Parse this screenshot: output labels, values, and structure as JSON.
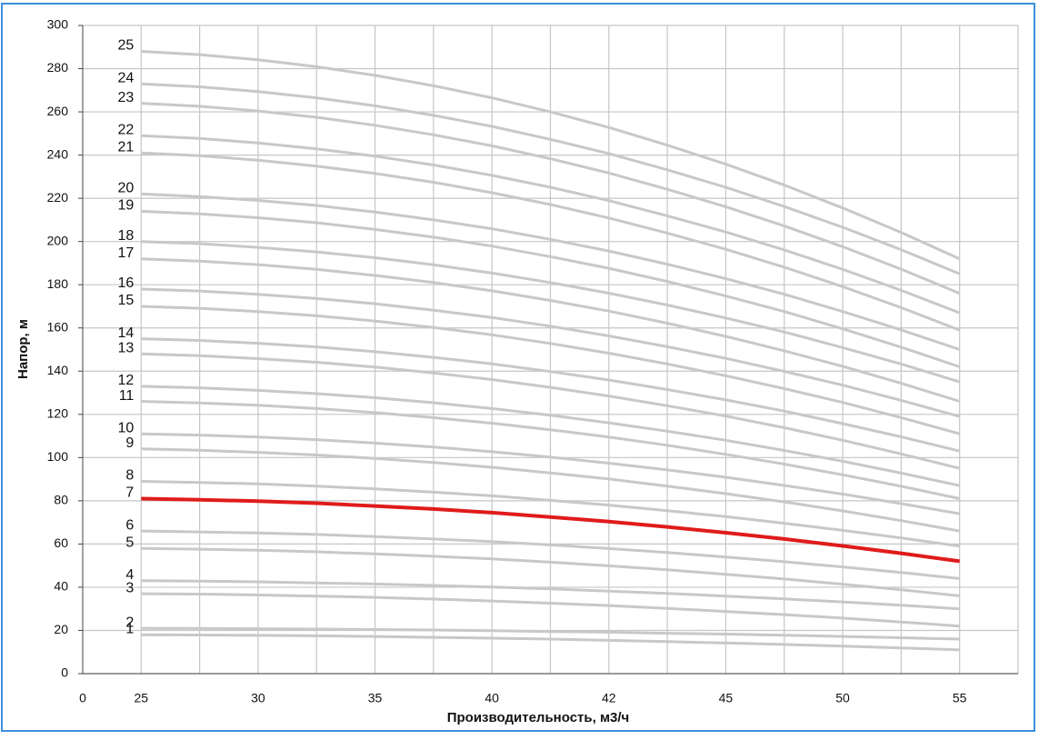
{
  "chart_data": {
    "type": "line",
    "x_label": "Производительность, м3/ч",
    "y_label": "Напор, м",
    "categories": [
      "0",
      "25",
      null,
      "30",
      null,
      "35",
      null,
      "40",
      null,
      "42",
      null,
      "45",
      null,
      "50",
      null,
      "55",
      null
    ],
    "ylim": [
      0,
      300
    ],
    "yticks": [
      0,
      20,
      40,
      60,
      80,
      100,
      120,
      140,
      160,
      180,
      200,
      220,
      240,
      260,
      280,
      300
    ],
    "grid": true,
    "series": [
      {
        "name": "1",
        "color": "#c8c8c8",
        "values": [
          null,
          18,
          17.9,
          17.7,
          17.5,
          17.2,
          16.8,
          16.4,
          16,
          15.4,
          14.8,
          14.2,
          13.5,
          12.7,
          11.9,
          11,
          null
        ]
      },
      {
        "name": "2",
        "color": "#c8c8c8",
        "values": [
          null,
          21,
          20.9,
          20.8,
          20.6,
          20.4,
          20.2,
          19.9,
          19.5,
          19.2,
          18.7,
          18.3,
          17.8,
          17.2,
          16.6,
          16,
          null
        ]
      },
      {
        "name": "3",
        "color": "#c8c8c8",
        "values": [
          null,
          37,
          36.8,
          36.4,
          35.9,
          35.3,
          34.5,
          33.6,
          32.6,
          31.5,
          30.2,
          28.8,
          27.3,
          25.7,
          23.9,
          22,
          null
        ]
      },
      {
        "name": "4",
        "color": "#c8c8c8",
        "values": [
          null,
          43,
          42.8,
          42.5,
          42,
          41.5,
          40.8,
          40.1,
          39.2,
          38.2,
          37.1,
          35.9,
          34.6,
          33.2,
          31.7,
          30,
          null
        ]
      },
      {
        "name": "5",
        "color": "#c8c8c8",
        "values": [
          null,
          58,
          57.6,
          57.1,
          56.4,
          55.4,
          54.3,
          53.1,
          51.6,
          49.9,
          48.1,
          46,
          43.8,
          41.4,
          38.8,
          36,
          null
        ]
      },
      {
        "name": "6",
        "color": "#c8c8c8",
        "values": [
          null,
          66,
          65.6,
          65.1,
          64.4,
          63.4,
          62.3,
          61.1,
          59.6,
          57.9,
          56.1,
          54,
          51.8,
          49.4,
          46.8,
          44,
          null
        ]
      },
      {
        "name": "7",
        "color": "#e01b1b",
        "values": [
          null,
          81,
          80.5,
          79.8,
          78.9,
          77.6,
          76.2,
          74.5,
          72.5,
          70.4,
          67.9,
          65.2,
          62.3,
          59.1,
          55.7,
          52,
          null
        ]
      },
      {
        "name": "8",
        "color": "#c8c8c8",
        "values": [
          null,
          89,
          88.5,
          87.8,
          86.8,
          85.5,
          84,
          82.3,
          80.2,
          78,
          75.4,
          72.7,
          69.6,
          66.3,
          62.8,
          59,
          null
        ]
      },
      {
        "name": "9",
        "color": "#c8c8c8",
        "values": [
          null,
          104,
          103.4,
          102.4,
          101.2,
          99.6,
          97.7,
          95.5,
          92.9,
          90.1,
          86.8,
          83.3,
          79.5,
          75.3,
          70.8,
          66,
          null
        ]
      },
      {
        "name": "10",
        "color": "#c8c8c8",
        "values": [
          null,
          111,
          110.4,
          109.5,
          108.3,
          106.7,
          104.9,
          102.7,
          100.2,
          97.4,
          94.3,
          90.9,
          87.1,
          83.1,
          78.7,
          74,
          null
        ]
      },
      {
        "name": "11",
        "color": "#c8c8c8",
        "values": [
          null,
          126,
          125.3,
          124.2,
          122.7,
          120.8,
          118.5,
          115.9,
          112.9,
          109.5,
          105.7,
          101.5,
          97,
          92,
          86.7,
          81,
          null
        ]
      },
      {
        "name": "12",
        "color": "#c8c8c8",
        "values": [
          null,
          133,
          132.3,
          131.1,
          129.6,
          127.7,
          125.4,
          122.7,
          119.6,
          116.1,
          112.2,
          108,
          103.3,
          98.3,
          92.8,
          87,
          null
        ]
      },
      {
        "name": "13",
        "color": "#c8c8c8",
        "values": [
          null,
          148,
          147.2,
          145.8,
          144.1,
          141.9,
          139.2,
          136.1,
          132.5,
          128.5,
          124,
          119.2,
          113.8,
          108,
          101.7,
          95,
          null
        ]
      },
      {
        "name": "14",
        "color": "#c8c8c8",
        "values": [
          null,
          155,
          154.2,
          152.9,
          151.2,
          149,
          146.4,
          143.4,
          139.8,
          135.9,
          131.5,
          126.7,
          121.5,
          115.7,
          109.6,
          103,
          null
        ]
      },
      {
        "name": "15",
        "color": "#c8c8c8",
        "values": [
          null,
          170,
          169.1,
          167.6,
          165.6,
          163.2,
          160.2,
          156.8,
          152.8,
          148.3,
          143.3,
          137.9,
          131.9,
          125.5,
          118.5,
          111,
          null
        ]
      },
      {
        "name": "16",
        "color": "#c8c8c8",
        "values": [
          null,
          178,
          177.1,
          175.6,
          173.6,
          171.2,
          168.2,
          164.8,
          160.8,
          156.3,
          151.3,
          145.9,
          139.9,
          133.5,
          126.5,
          119,
          null
        ]
      },
      {
        "name": "17",
        "color": "#c8c8c8",
        "values": [
          null,
          192,
          190.9,
          189.3,
          187.1,
          184.3,
          181,
          177.2,
          172.7,
          167.8,
          162.2,
          156.1,
          149.4,
          142.2,
          134.4,
          126,
          null
        ]
      },
      {
        "name": "18",
        "color": "#c8c8c8",
        "values": [
          null,
          200,
          199,
          197.3,
          195.2,
          192.5,
          189.2,
          185.4,
          181,
          176.1,
          170.6,
          164.6,
          158.1,
          150.9,
          143.3,
          135,
          null
        ]
      },
      {
        "name": "19",
        "color": "#c8c8c8",
        "values": [
          null,
          214,
          212.8,
          211,
          208.7,
          205.6,
          202,
          197.9,
          193,
          187.6,
          181.5,
          174.8,
          167.6,
          159.6,
          151.1,
          142,
          null
        ]
      },
      {
        "name": "20",
        "color": "#c8c8c8",
        "values": [
          null,
          222,
          220.8,
          219,
          216.7,
          213.6,
          210,
          205.9,
          201,
          195.6,
          189.5,
          182.8,
          175.6,
          167.6,
          159.1,
          150,
          null
        ]
      },
      {
        "name": "21",
        "color": "#c8c8c8",
        "values": [
          null,
          241,
          239.7,
          237.6,
          234.9,
          231.5,
          227.4,
          222.6,
          217.1,
          210.9,
          203.9,
          196.4,
          188.1,
          179.1,
          169.4,
          159,
          null
        ]
      },
      {
        "name": "22",
        "color": "#c8c8c8",
        "values": [
          null,
          249,
          247.7,
          245.6,
          242.9,
          239.5,
          235.4,
          230.6,
          225.1,
          218.9,
          211.9,
          204.4,
          196.1,
          187.1,
          177.4,
          167,
          null
        ]
      },
      {
        "name": "23",
        "color": "#c8c8c8",
        "values": [
          null,
          264,
          262.6,
          260.4,
          257.5,
          253.8,
          249.4,
          244.3,
          238.3,
          231.7,
          224.2,
          216.1,
          207.2,
          197.6,
          187.2,
          176,
          null
        ]
      },
      {
        "name": "24",
        "color": "#c8c8c8",
        "values": [
          null,
          273,
          271.6,
          269.4,
          266.5,
          262.8,
          258.4,
          253.3,
          247.3,
          240.7,
          233.2,
          225.1,
          216.2,
          206.6,
          196.2,
          185,
          null
        ]
      },
      {
        "name": "25",
        "color": "#c8c8c8",
        "values": [
          null,
          288,
          286.5,
          284.1,
          280.9,
          276.9,
          272.1,
          266.5,
          260,
          252.8,
          244.6,
          235.8,
          226.1,
          215.5,
          204.2,
          192,
          null
        ]
      }
    ]
  }
}
